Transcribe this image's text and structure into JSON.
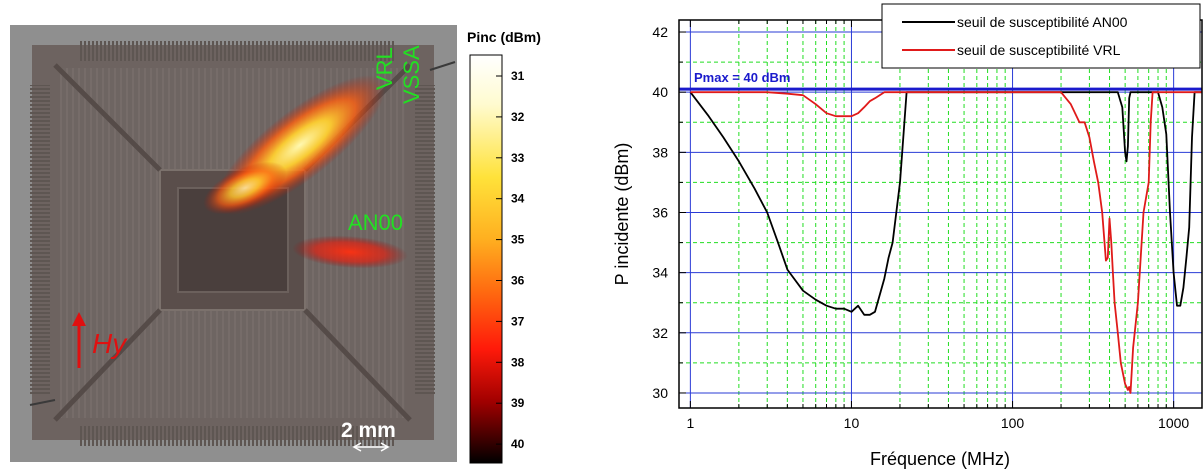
{
  "map": {
    "colorbar_title": "Pinc (dBm)",
    "colorbar_ticks": [
      "31",
      "32",
      "33",
      "34",
      "35",
      "36",
      "37",
      "38",
      "39",
      "40"
    ],
    "labels": {
      "vrl": "VRL",
      "vssa": "VSSA",
      "an00": "AN00",
      "field": "Hy",
      "scale": "2 mm"
    },
    "colors": {
      "label_green": "#22e022",
      "field_red": "#e01010",
      "scale_white": "#ffffff"
    },
    "icons": {
      "field_direction": "arrow-up-icon",
      "scale": "double-arrow-icon"
    }
  },
  "chart_data": {
    "type": "line",
    "xlabel": "Fréquence (MHz)",
    "ylabel": "P incidente (dBm)",
    "xscale": "log",
    "xlim": [
      0.85,
      1500
    ],
    "ylim": [
      29.5,
      42.4
    ],
    "xticks": [
      1,
      10,
      100,
      1000
    ],
    "xtick_labels": [
      "1",
      "10",
      "100",
      "1000"
    ],
    "yticks": [
      30,
      32,
      34,
      36,
      38,
      40,
      42
    ],
    "ytick_labels": [
      "30",
      "32",
      "34",
      "36",
      "38",
      "40",
      "42"
    ],
    "grid": true,
    "legend_position": "top-right",
    "annotation": {
      "text": "Pmax = 40 dBm",
      "y": 40.1,
      "color": "#1a1acc"
    },
    "series": [
      {
        "name": "seuil de susceptibilité AN00",
        "color": "#000000",
        "x": [
          1,
          1.3,
          1.6,
          2,
          2.5,
          3,
          3.5,
          4,
          5,
          6,
          7,
          8,
          9,
          10,
          11,
          12,
          13,
          14,
          16,
          17,
          18,
          20,
          22,
          25,
          50,
          100,
          200,
          400,
          450,
          480,
          500,
          510,
          520,
          530,
          540,
          560,
          600,
          700,
          800,
          850,
          900,
          950,
          1000,
          1050,
          1100,
          1150,
          1200,
          1250,
          1300,
          1350,
          1500
        ],
        "y": [
          40.0,
          39.2,
          38.5,
          37.7,
          36.8,
          36.0,
          35.0,
          34.1,
          33.4,
          33.1,
          32.9,
          32.8,
          32.8,
          32.7,
          32.9,
          32.6,
          32.6,
          32.7,
          33.8,
          34.5,
          35.0,
          37.0,
          40.0,
          40.0,
          40.0,
          40.0,
          40.0,
          40.0,
          40.0,
          39.5,
          38.0,
          37.7,
          38.2,
          39.8,
          40.0,
          40.0,
          40.0,
          40.0,
          40.0,
          39.5,
          38.6,
          36.0,
          34.0,
          32.9,
          32.9,
          33.5,
          34.5,
          35.5,
          38.5,
          40.0,
          40.0
        ]
      },
      {
        "name": "seuil de susceptibilité VRL",
        "color": "#e01a1a",
        "x": [
          1,
          2,
          3,
          4,
          5,
          6,
          7,
          8,
          9,
          10,
          11,
          12,
          13,
          14,
          16,
          20,
          50,
          100,
          150,
          200,
          230,
          260,
          280,
          300,
          320,
          340,
          360,
          380,
          390,
          400,
          410,
          420,
          430,
          450,
          470,
          500,
          510,
          520,
          530,
          540,
          560,
          600,
          650,
          700,
          720,
          740,
          760,
          780,
          800,
          1000,
          1500
        ],
        "y": [
          40.0,
          40.0,
          40.0,
          39.95,
          39.9,
          39.6,
          39.3,
          39.2,
          39.2,
          39.2,
          39.3,
          39.5,
          39.7,
          39.8,
          40.0,
          40.0,
          40.0,
          40.0,
          40.0,
          40.0,
          39.6,
          39.0,
          39.0,
          38.5,
          37.7,
          37.0,
          36.0,
          34.4,
          34.5,
          35.8,
          35.0,
          34.0,
          33.0,
          32.0,
          31.0,
          30.3,
          30.2,
          30.1,
          30.2,
          30.0,
          31.5,
          33.0,
          36.0,
          37.0,
          39.0,
          40.0,
          40.0,
          40.0,
          40.0,
          40.0,
          40.0
        ]
      }
    ]
  }
}
